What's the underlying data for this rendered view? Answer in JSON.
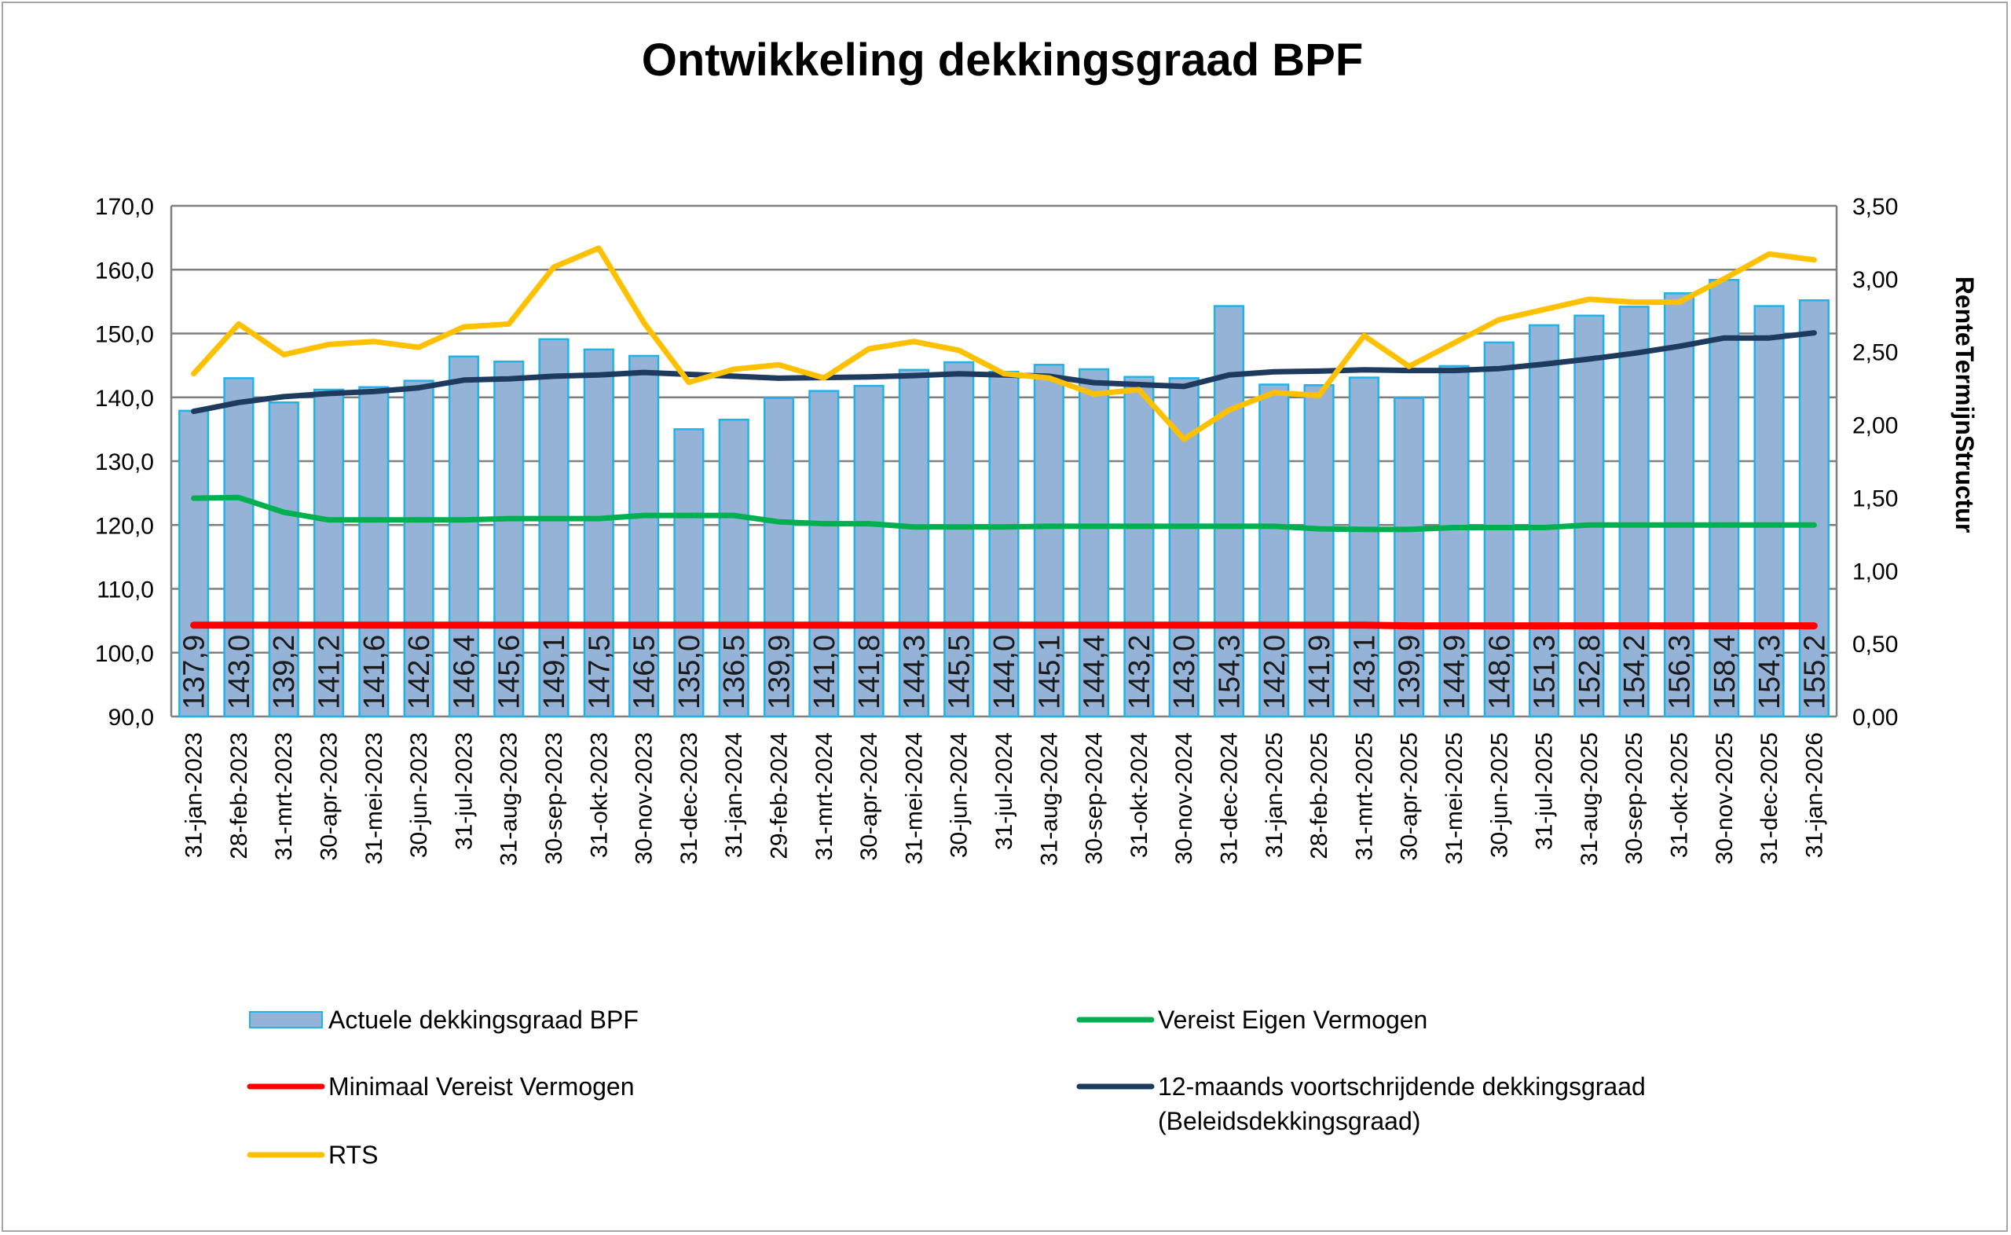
{
  "chart_data": {
    "type": "bar",
    "title": "Ontwikkeling dekkingsgraad BPF",
    "xlabel": "",
    "ylabel": "",
    "y2label": "RenteTermijnStructur",
    "ylim": [
      90,
      170
    ],
    "yticks": [
      "90,0",
      "100,0",
      "110,0",
      "120,0",
      "130,0",
      "140,0",
      "150,0",
      "160,0",
      "170,0"
    ],
    "y2lim": [
      0,
      3.5
    ],
    "y2ticks": [
      "0,00",
      "0,50",
      "1,00",
      "1,50",
      "2,00",
      "2,50",
      "3,00",
      "3,50"
    ],
    "grid": true,
    "legend_position": "bottom",
    "categories": [
      "31-jan-2023",
      "28-feb-2023",
      "31-mrt-2023",
      "30-apr-2023",
      "31-mei-2023",
      "30-jun-2023",
      "31-jul-2023",
      "31-aug-2023",
      "30-sep-2023",
      "31-okt-2023",
      "30-nov-2023",
      "31-dec-2023",
      "31-jan-2024",
      "29-feb-2024",
      "31-mrt-2024",
      "30-apr-2024",
      "31-mei-2024",
      "30-jun-2024",
      "31-jul-2024",
      "31-aug-2024",
      "30-sep-2024",
      "31-okt-2024",
      "30-nov-2024",
      "31-dec-2024",
      "31-jan-2025",
      "28-feb-2025",
      "31-mrt-2025",
      "30-apr-2025",
      "31-mei-2025",
      "30-jun-2025",
      "31-jul-2025",
      "31-aug-2025",
      "30-sep-2025",
      "31-okt-2025",
      "30-nov-2025",
      "31-dec-2025",
      "31-jan-2026"
    ],
    "series": [
      {
        "name": "Actuele dekkingsgraad BPF",
        "kind": "bar",
        "axis": "left",
        "color": "#95b3d7",
        "edge_color": "#1fb3e8",
        "values": [
          137.9,
          143.0,
          139.2,
          141.2,
          141.6,
          142.6,
          146.4,
          145.6,
          149.1,
          147.5,
          146.5,
          135.0,
          136.5,
          139.9,
          141.0,
          141.8,
          144.3,
          145.5,
          144.0,
          145.1,
          144.4,
          143.2,
          143.0,
          154.3,
          142.0,
          141.9,
          143.1,
          139.9,
          144.9,
          148.6,
          151.3,
          152.8,
          154.2,
          156.3,
          158.4,
          154.3,
          155.2
        ],
        "labels": [
          "137,9",
          "143,0",
          "139,2",
          "141,2",
          "141,6",
          "142,6",
          "146,4",
          "145,6",
          "149,1",
          "147,5",
          "146,5",
          "135,0",
          "136,5",
          "139,9",
          "141,0",
          "141,8",
          "144,3",
          "145,5",
          "144,0",
          "145,1",
          "144,4",
          "143,2",
          "143,0",
          "154,3",
          "142,0",
          "141,9",
          "143,1",
          "139,9",
          "144,9",
          "148,6",
          "151,3",
          "152,8",
          "154,2",
          "156,3",
          "158,4",
          "154,3",
          "155,2"
        ]
      },
      {
        "name": "Vereist Eigen Vermogen",
        "kind": "line",
        "axis": "left",
        "color": "#00b050",
        "values": [
          124.2,
          124.3,
          122.0,
          120.8,
          120.8,
          120.8,
          120.8,
          121.0,
          121.0,
          121.0,
          121.5,
          121.5,
          121.5,
          120.5,
          120.2,
          120.2,
          119.7,
          119.7,
          119.7,
          119.8,
          119.8,
          119.8,
          119.8,
          119.8,
          119.8,
          119.4,
          119.3,
          119.3,
          119.6,
          119.6,
          119.6,
          120.0,
          120.0,
          120.0,
          120.0,
          120.0,
          120.0
        ]
      },
      {
        "name": "Minimaal Vereist Vermogen",
        "kind": "line",
        "axis": "left",
        "color": "#ff0000",
        "values": [
          104.3,
          104.3,
          104.3,
          104.3,
          104.3,
          104.3,
          104.3,
          104.3,
          104.3,
          104.3,
          104.3,
          104.3,
          104.3,
          104.3,
          104.3,
          104.3,
          104.3,
          104.3,
          104.3,
          104.3,
          104.3,
          104.3,
          104.3,
          104.3,
          104.3,
          104.3,
          104.3,
          104.2,
          104.2,
          104.2,
          104.2,
          104.2,
          104.2,
          104.2,
          104.2,
          104.2,
          104.2
        ]
      },
      {
        "name": "12-maands voortschrijdende dekkingsgraad (Beleidsdekkingsgraad)",
        "legend_lines": [
          "12-maands voortschrijdende dekkingsgraad",
          "(Beleidsdekkingsgraad)"
        ],
        "kind": "line",
        "axis": "left",
        "color": "#1f3a5f",
        "values": [
          137.8,
          139.2,
          140.1,
          140.6,
          140.9,
          141.5,
          142.7,
          142.9,
          143.3,
          143.5,
          143.9,
          143.6,
          143.3,
          143.0,
          143.1,
          143.2,
          143.4,
          143.7,
          143.5,
          143.3,
          142.3,
          142.0,
          141.7,
          143.5,
          144.0,
          144.1,
          144.3,
          144.2,
          144.2,
          144.5,
          145.2,
          146.0,
          146.9,
          148.0,
          149.3,
          149.3,
          150.1
        ]
      },
      {
        "name": "RTS",
        "kind": "line",
        "axis": "right",
        "color": "#ffc000",
        "values": [
          2.35,
          2.69,
          2.48,
          2.55,
          2.57,
          2.53,
          2.67,
          2.69,
          3.08,
          3.21,
          2.7,
          2.29,
          2.38,
          2.41,
          2.32,
          2.52,
          2.57,
          2.51,
          2.35,
          2.32,
          2.21,
          2.24,
          1.9,
          2.1,
          2.22,
          2.2,
          2.61,
          2.4,
          2.56,
          2.72,
          2.79,
          2.86,
          2.84,
          2.84,
          3.0,
          3.17,
          3.13
        ]
      }
    ]
  }
}
